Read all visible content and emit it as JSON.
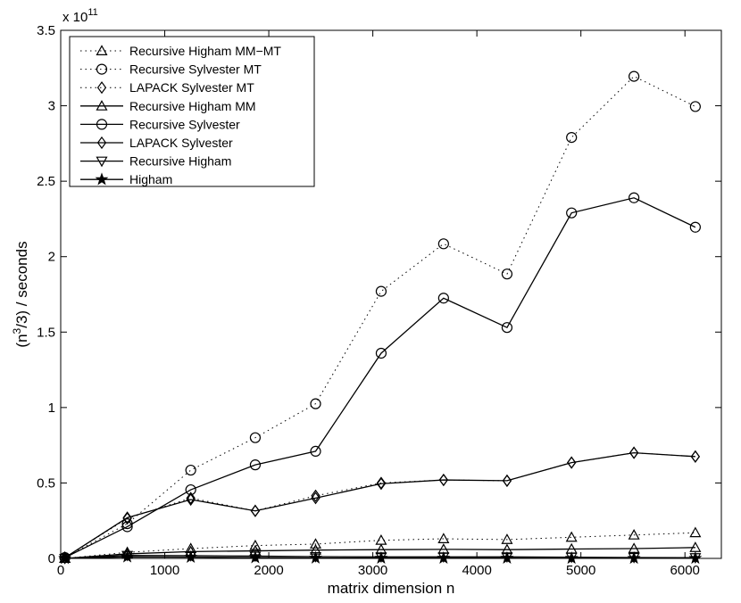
{
  "chart_data": {
    "type": "line",
    "title": "",
    "xlabel": "matrix dimension n",
    "ylabel_base": "(n",
    "ylabel_sup": "3",
    "ylabel_rest": "/3) / seconds",
    "ylim": [
      0,
      3.5
    ],
    "xlim": [
      0,
      6350
    ],
    "y_multiplier_base": "x 10",
    "y_multiplier_exp": "11",
    "x_ticks": [
      0,
      1000,
      2000,
      3000,
      4000,
      5000,
      6000
    ],
    "x_tick_labels": [
      "0",
      "1000",
      "2000",
      "3000",
      "4000",
      "5000",
      "6000"
    ],
    "y_ticks": [
      0,
      0.5,
      1,
      1.5,
      2,
      2.5,
      3,
      3.5
    ],
    "y_tick_labels": [
      "0",
      "0.5",
      "1",
      "1.5",
      "2",
      "2.5",
      "3",
      "3.5"
    ],
    "grid": false,
    "legend_position": "top-left",
    "x": [
      40,
      640,
      1250,
      1870,
      2450,
      3080,
      3680,
      4290,
      4910,
      5510,
      6100
    ],
    "series": [
      {
        "name": "Recursive Higham MM−MT",
        "style": "dotted",
        "marker": "triangle-up",
        "values": [
          0.0,
          0.04,
          0.065,
          0.085,
          0.095,
          0.12,
          0.13,
          0.125,
          0.14,
          0.155,
          0.17
        ]
      },
      {
        "name": "Recursive Sylvester MT",
        "style": "dotted",
        "marker": "circle",
        "values": [
          0.005,
          0.23,
          0.585,
          0.8,
          1.025,
          1.77,
          2.085,
          1.885,
          2.79,
          3.195,
          2.995
        ]
      },
      {
        "name": "LAPACK Sylvester MT",
        "style": "dotted",
        "marker": "diamond",
        "values": [
          0.005,
          0.265,
          0.4,
          0.315,
          0.415,
          0.5,
          0.52,
          0.515,
          0.635,
          0.7,
          0.675
        ]
      },
      {
        "name": "Recursive Higham MM",
        "style": "solid",
        "marker": "triangle-up",
        "values": [
          0.0,
          0.03,
          0.045,
          0.05,
          0.055,
          0.058,
          0.06,
          0.058,
          0.062,
          0.065,
          0.072
        ]
      },
      {
        "name": "Recursive Sylvester",
        "style": "solid",
        "marker": "circle",
        "values": [
          0.005,
          0.21,
          0.455,
          0.62,
          0.71,
          1.36,
          1.725,
          1.53,
          2.29,
          2.39,
          2.195
        ]
      },
      {
        "name": "LAPACK Sylvester",
        "style": "solid",
        "marker": "diamond",
        "values": [
          0.005,
          0.27,
          0.39,
          0.315,
          0.4,
          0.495,
          0.52,
          0.515,
          0.635,
          0.7,
          0.675
        ]
      },
      {
        "name": "Recursive Higham",
        "style": "solid",
        "marker": "triangle-down",
        "values": [
          0.0,
          0.02,
          0.018,
          0.015,
          0.012,
          0.01,
          0.01,
          0.01,
          0.008,
          0.006,
          0.005
        ]
      },
      {
        "name": "Higham",
        "style": "solid",
        "marker": "star",
        "values": [
          0.0,
          0.01,
          0.008,
          0.005,
          0.003,
          0.002,
          0.002,
          0.002,
          0.001,
          0.001,
          0.001
        ]
      }
    ]
  }
}
